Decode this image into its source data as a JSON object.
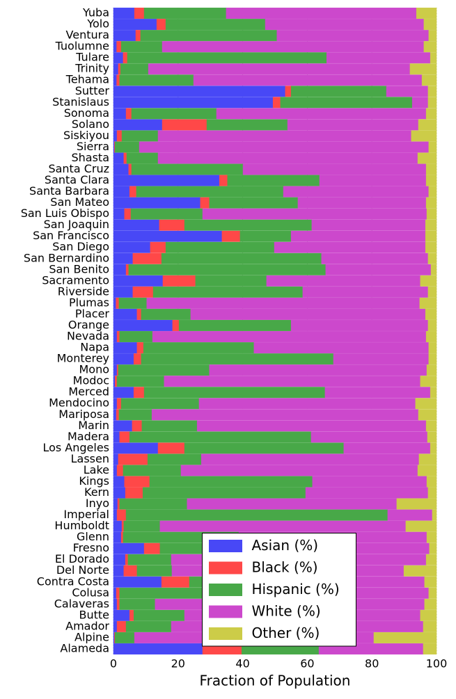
{
  "chart_data": {
    "type": "bar",
    "orientation": "horizontal",
    "stacked": true,
    "xlabel": "Fraction of Population",
    "xlim": [
      0,
      100
    ],
    "xticks": [
      0,
      20,
      40,
      60,
      80,
      100
    ],
    "grid": true,
    "legend": "lower center",
    "categories": [
      "Alameda",
      "Alpine",
      "Amador",
      "Butte",
      "Calaveras",
      "Colusa",
      "Contra Costa",
      "Del Norte",
      "El Dorado",
      "Fresno",
      "Glenn",
      "Humboldt",
      "Imperial",
      "Inyo",
      "Kern",
      "Kings",
      "Lake",
      "Lassen",
      "Los Angeles",
      "Madera",
      "Marin",
      "Mariposa",
      "Mendocino",
      "Merced",
      "Modoc",
      "Mono",
      "Monterey",
      "Napa",
      "Nevada",
      "Orange",
      "Placer",
      "Plumas",
      "Riverside",
      "Sacramento",
      "San Benito",
      "San Bernardino",
      "San Diego",
      "San Francisco",
      "San Joaquin",
      "San Luis Obispo",
      "San Mateo",
      "Santa Barbara",
      "Santa Clara",
      "Santa Cruz",
      "Shasta",
      "Sierra",
      "Siskiyou",
      "Solano",
      "Sonoma",
      "Stanislaus",
      "Sutter",
      "Tehama",
      "Trinity",
      "Tulare",
      "Tuolumne",
      "Ventura",
      "Yolo",
      "Yuba"
    ],
    "series": [
      {
        "name": "Asian (%)",
        "color": "#4848f6",
        "values": [
          27.6,
          0.3,
          1.1,
          5,
          1.1,
          0.9,
          14.9,
          3.2,
          3.7,
          9.5,
          2.4,
          2.6,
          1.1,
          1.3,
          3.7,
          3.4,
          1.1,
          1.5,
          13.8,
          1.9,
          5.8,
          0.9,
          1.1,
          6.3,
          0.5,
          1.1,
          6.3,
          7.3,
          1.1,
          18.3,
          7.3,
          0.8,
          6,
          15.3,
          3.9,
          6,
          11.4,
          33.6,
          14.2,
          3.4,
          26.9,
          5,
          32.8,
          4.7,
          3.2,
          0.3,
          1.1,
          15.1,
          3.9,
          49.4,
          53.2,
          1,
          1.5,
          3,
          1,
          6.9,
          13.4,
          6.5
        ]
      },
      {
        "name": "Black (%)",
        "color": "#ff4848",
        "values": [
          12.1,
          0.2,
          2.8,
          1.3,
          0.8,
          1,
          8.6,
          4.1,
          0.8,
          4.9,
          0.6,
          0.6,
          2.8,
          0.6,
          5.4,
          7.8,
          1.9,
          9.1,
          8.2,
          3.1,
          3,
          0.8,
          1.3,
          3.2,
          0.6,
          0.4,
          2.3,
          2,
          0.8,
          2,
          1.3,
          0.9,
          6.3,
          10.1,
          0.8,
          8.9,
          4.8,
          5.6,
          7.8,
          2,
          2.8,
          2.1,
          2.5,
          0.9,
          0.9,
          0.2,
          1.5,
          13.8,
          1.7,
          2.3,
          1.8,
          0.9,
          0.7,
          1.3,
          1.4,
          1.5,
          2.8,
          3
        ]
      },
      {
        "name": "Hispanic (%)",
        "color": "#48a848",
        "values": [
          23.9,
          6,
          14,
          15.7,
          11,
          56.1,
          24,
          10.8,
          13.4,
          49.2,
          35.8,
          11.2,
          81,
          20.9,
          50.4,
          50.4,
          17.9,
          16.6,
          49.3,
          56.2,
          17.1,
          10.2,
          24.1,
          56,
          14.6,
          28.2,
          59.5,
          34.2,
          10.2,
          34.7,
          15.3,
          8.6,
          46.3,
          22,
          61,
          49.5,
          33.6,
          15.8,
          39.4,
          22.2,
          27.4,
          45.5,
          28.5,
          34.5,
          9.7,
          7.5,
          11.2,
          25,
          26.3,
          40.8,
          29.5,
          22.9,
          8.6,
          61.7,
          12.7,
          42.2,
          30.8,
          25.4
        ]
      },
      {
        "name": "White (%)",
        "color": "#cc48cc",
        "values": [
          32.3,
          74.1,
          78,
          73,
          83.4,
          39.6,
          48.8,
          71.8,
          78.9,
          34.2,
          58.2,
          76.1,
          13.8,
          64.9,
          37.9,
          35.4,
          73.3,
          67.4,
          26.8,
          36,
          70.9,
          82.5,
          67,
          32.6,
          79.3,
          67.3,
          29.5,
          54.1,
          84.7,
          42.4,
          72.7,
          84.5,
          38.8,
          47.6,
          32.6,
          33,
          46.8,
          41.6,
          35.2,
          69.4,
          39.7,
          45,
          33,
          56.7,
          80.4,
          89.6,
          78.4,
          40.5,
          64.9,
          4.9,
          12.9,
          70.7,
          81,
          32.1,
          81,
          47,
          49.1,
          58.9
        ]
      },
      {
        "name": "Other (%)",
        "color": "#cccc48",
        "values": [
          4.1,
          19.4,
          4.1,
          5,
          3.7,
          2.4,
          3.7,
          10.1,
          3.2,
          2.2,
          3,
          9.5,
          1.3,
          12.3,
          2.6,
          3,
          5.8,
          5.4,
          1.9,
          2.8,
          3.2,
          5.6,
          6.5,
          1.9,
          5,
          3,
          2.4,
          2.4,
          3.2,
          2.6,
          3.4,
          5.2,
          2.6,
          5,
          1.7,
          2.6,
          3.4,
          3.4,
          3.4,
          3,
          3.2,
          2.4,
          3.2,
          3.2,
          5.8,
          2.4,
          7.8,
          5.6,
          3.2,
          2.6,
          2.6,
          4.5,
          8.2,
          1.9,
          3.9,
          2.4,
          3.9,
          6.2
        ]
      }
    ]
  }
}
